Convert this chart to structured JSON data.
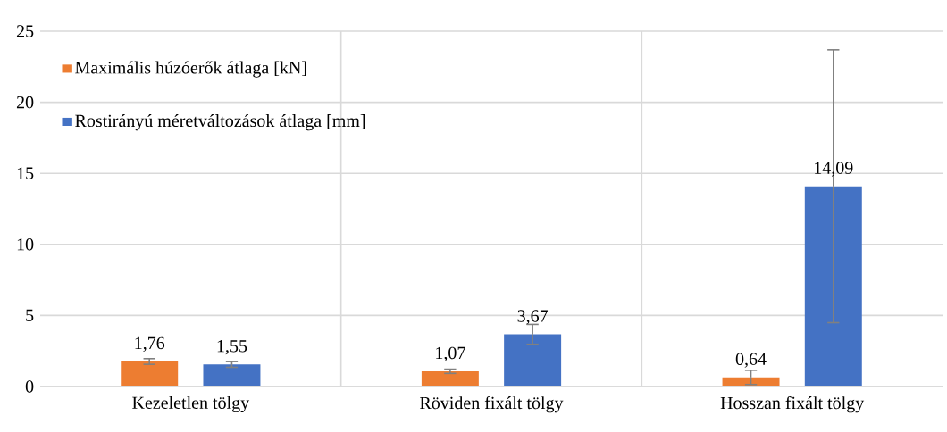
{
  "chart_data": {
    "type": "bar",
    "categories": [
      "Kezeletlen tölgy",
      "Röviden fixált tölgy",
      "Hosszan fixált tölgy"
    ],
    "series": [
      {
        "name": "Maximális húzóerők átlaga [kN]",
        "color": "#ed7d31",
        "values": [
          1.76,
          1.07,
          0.64
        ],
        "errors": [
          0.2,
          0.15,
          0.5
        ],
        "value_labels": [
          "1,76",
          "1,07",
          "0,64"
        ]
      },
      {
        "name": "Rostirányú méretváltozások átlaga [mm]",
        "color": "#4472c4",
        "values": [
          1.55,
          3.67,
          14.09
        ],
        "errors": [
          0.2,
          0.7,
          9.6
        ],
        "value_labels": [
          "1,55",
          "3,67",
          "14,09"
        ]
      }
    ],
    "ylim": [
      0,
      25
    ],
    "yticks": [
      0,
      5,
      10,
      15,
      20,
      25
    ],
    "grid": true,
    "legend": "top left"
  }
}
